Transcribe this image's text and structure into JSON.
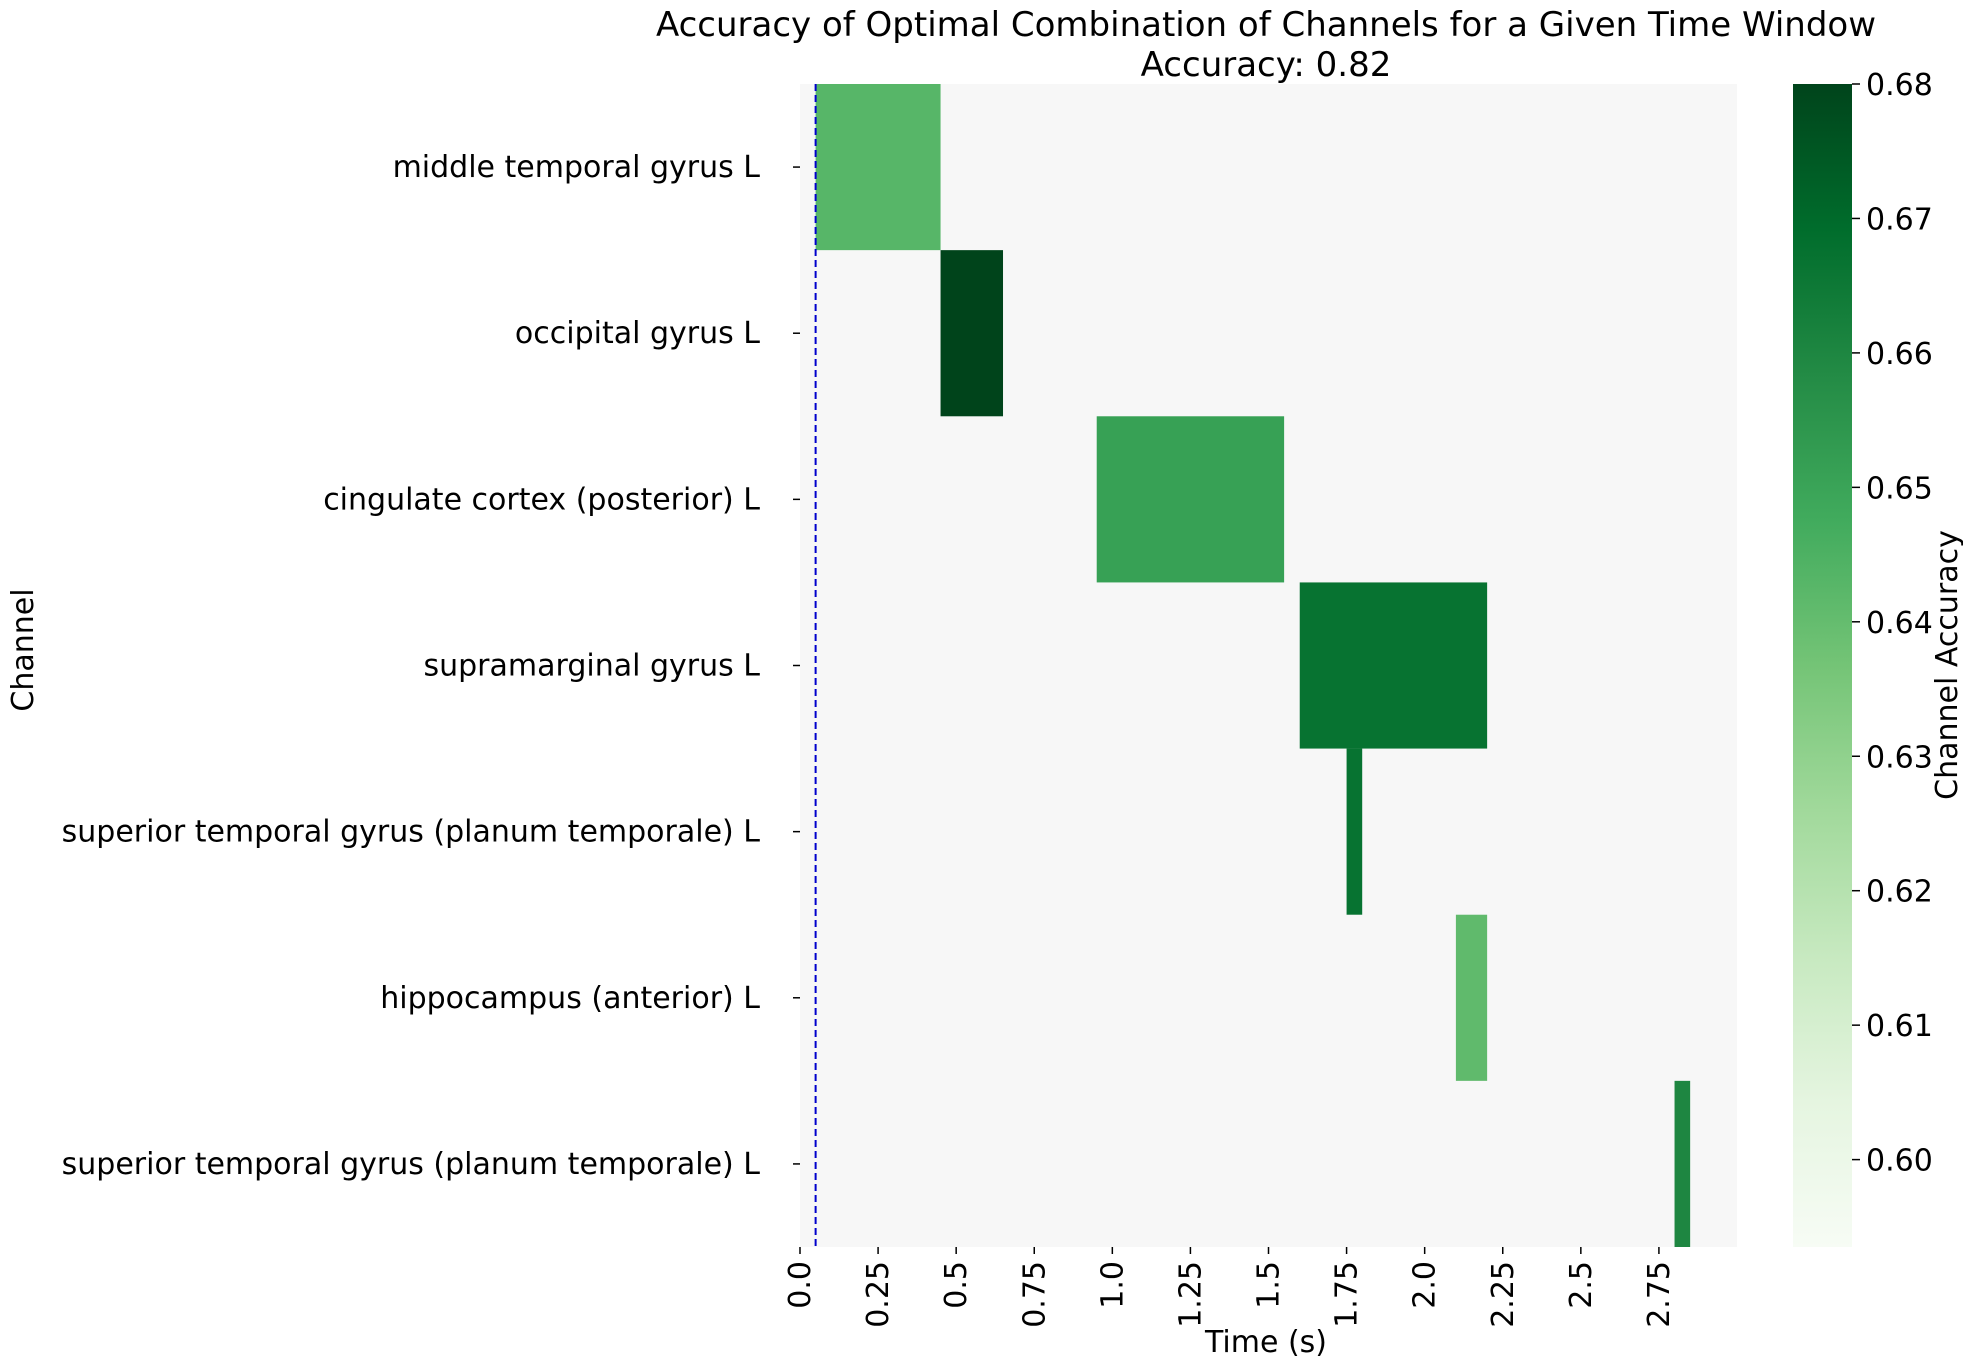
{
  "chart_data": {
    "type": "heatmap",
    "title": "Accuracy of Optimal Combination of Channels for a Given Time Window",
    "subtitle": "Accuracy: 0.82",
    "xlabel": "Time (s)",
    "ylabel": "Channel",
    "colorbar_label": "Channel Accuracy",
    "xlim": [
      0.0,
      3.0
    ],
    "x_ticks": [
      0.0,
      0.25,
      0.5,
      0.75,
      1.0,
      1.25,
      1.5,
      1.75,
      2.0,
      2.25,
      2.5,
      2.75
    ],
    "x_tick_labels": [
      "0.0",
      "0.25",
      "0.5",
      "0.75",
      "1.0",
      "1.25",
      "1.5",
      "1.75",
      "2.0",
      "2.25",
      "2.5",
      "2.75"
    ],
    "channels": [
      "middle temporal gyrus L",
      "occipital gyrus L",
      "cingulate cortex (posterior) L",
      "supramarginal gyrus L",
      "superior temporal gyrus (planum temporale) L",
      "hippocampus (anterior) L",
      "superior temporal gyrus (planum temporale) L"
    ],
    "cells": [
      {
        "channel_index": 0,
        "start": 0.05,
        "end": 0.45,
        "accuracy": 0.643
      },
      {
        "channel_index": 1,
        "start": 0.45,
        "end": 0.65,
        "accuracy": 0.68
      },
      {
        "channel_index": 2,
        "start": 0.95,
        "end": 1.55,
        "accuracy": 0.651
      },
      {
        "channel_index": 3,
        "start": 1.6,
        "end": 2.2,
        "accuracy": 0.667
      },
      {
        "channel_index": 4,
        "start": 1.75,
        "end": 1.8,
        "accuracy": 0.667
      },
      {
        "channel_index": 5,
        "start": 2.1,
        "end": 2.2,
        "accuracy": 0.641
      },
      {
        "channel_index": 6,
        "start": 2.8,
        "end": 2.85,
        "accuracy": 0.66
      }
    ],
    "reference_line_x": 0.05,
    "reference_line_color": "#0000cc",
    "background_color": "#f7f7f7",
    "colorbar": {
      "min": 0.5935,
      "max": 0.68,
      "ticks": [
        0.6,
        0.61,
        0.62,
        0.63,
        0.64,
        0.65,
        0.66,
        0.67,
        0.68
      ],
      "tick_labels": [
        "0.60",
        "0.61",
        "0.62",
        "0.63",
        "0.64",
        "0.65",
        "0.66",
        "0.67",
        "0.68"
      ],
      "colormap": "Greens",
      "low_color": "#f7fcf5",
      "high_color": "#00441b"
    }
  }
}
